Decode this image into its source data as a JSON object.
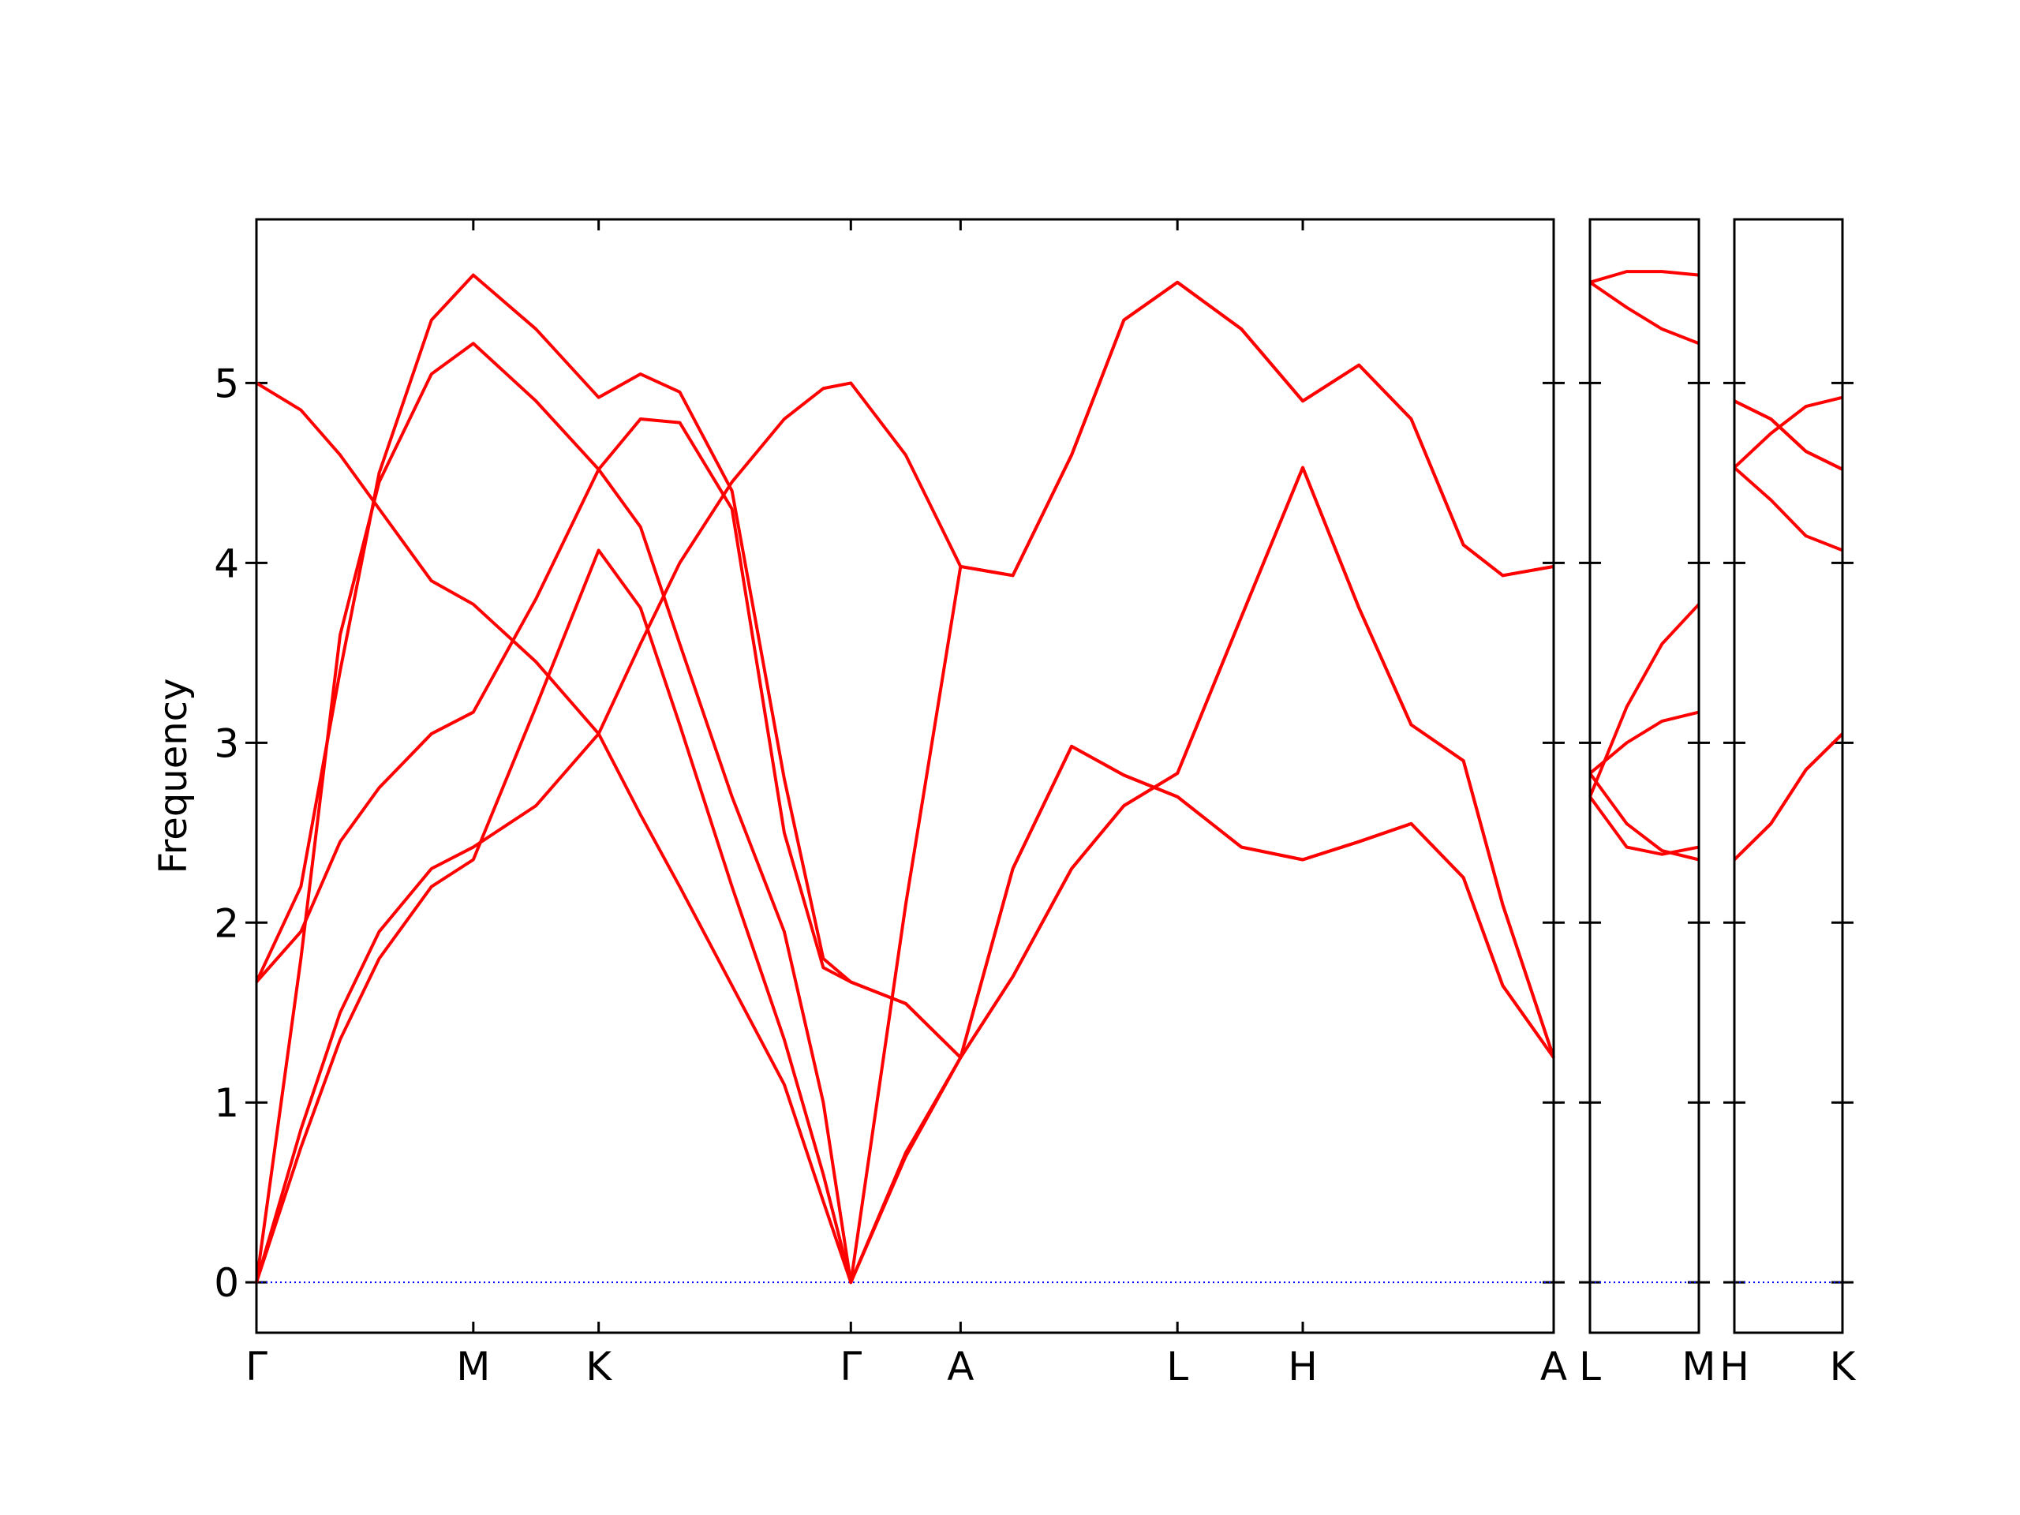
{
  "chart_data": [
    {
      "type": "line",
      "ylabel": "Frequency",
      "color": "#ff0000",
      "zero_line_color": "#0000ff",
      "xlim": [
        0,
        5.982
      ],
      "ylim": [
        -0.28,
        5.91
      ],
      "yticks": [
        0,
        1,
        2,
        3,
        4,
        5
      ],
      "xticks": [
        {
          "value": 0,
          "label": "Γ"
        },
        {
          "value": 1.0,
          "label": "M"
        },
        {
          "value": 1.578,
          "label": "K"
        },
        {
          "value": 2.741,
          "label": "Γ"
        },
        {
          "value": 3.247,
          "label": "A"
        },
        {
          "value": 4.247,
          "label": "L"
        },
        {
          "value": 4.825,
          "label": "H"
        },
        {
          "value": 5.982,
          "label": "A"
        }
      ],
      "x": [
        0,
        0.205,
        0.386,
        0.566,
        0.807,
        1.0,
        1.289,
        1.578,
        1.771,
        1.952,
        2.193,
        2.434,
        2.614,
        2.741,
        2.994,
        3.247,
        3.488,
        3.759,
        4.0,
        4.247,
        4.542,
        4.825,
        5.084,
        5.325,
        5.566,
        5.747,
        5.982
      ],
      "series": [
        {
          "values": [
            0,
            0.75,
            1.35,
            1.8,
            2.2,
            2.35,
            3.2,
            4.07,
            3.75,
            3.1,
            2.2,
            1.35,
            0.6,
            0,
            2.1,
            3.98,
            3.93,
            4.6,
            5.35,
            5.56,
            5.3,
            4.9,
            5.1,
            4.8,
            4.1,
            3.93,
            3.98
          ]
        },
        {
          "values": [
            0,
            0.85,
            1.5,
            1.95,
            2.3,
            2.42,
            2.65,
            3.05,
            3.55,
            4.0,
            4.45,
            4.8,
            4.97,
            5.0,
            4.6,
            3.98,
            3.93,
            4.6,
            5.35,
            5.56,
            5.3,
            4.9,
            5.1,
            4.8,
            4.1,
            3.93,
            3.98
          ]
        },
        {
          "values": [
            0,
            1.8,
            3.6,
            4.45,
            5.05,
            5.22,
            4.9,
            4.52,
            4.8,
            4.78,
            4.3,
            2.5,
            1.75,
            1.67,
            1.55,
            1.25,
            2.3,
            2.98,
            2.82,
            2.7,
            2.42,
            2.35,
            2.45,
            2.55,
            2.25,
            1.65,
            1.25
          ]
        },
        {
          "values": [
            1.67,
            2.2,
            3.4,
            4.5,
            5.35,
            5.6,
            5.3,
            4.92,
            5.05,
            4.95,
            4.4,
            2.8,
            1.8,
            1.67,
            1.55,
            1.25,
            2.3,
            2.98,
            2.82,
            2.7,
            2.42,
            2.35,
            2.45,
            2.55,
            2.25,
            1.65,
            1.25
          ]
        },
        {
          "values": [
            1.67,
            1.95,
            2.45,
            2.75,
            3.05,
            3.17,
            3.8,
            4.52,
            4.2,
            3.55,
            2.7,
            1.95,
            1.0,
            0,
            0.72,
            1.25,
            1.7,
            2.3,
            2.65,
            2.83,
            3.7,
            4.53,
            3.75,
            3.1,
            2.9,
            2.1,
            1.25
          ]
        },
        {
          "values": [
            5.0,
            4.85,
            4.6,
            4.3,
            3.9,
            3.77,
            3.45,
            3.05,
            2.6,
            2.2,
            1.65,
            1.1,
            0.45,
            0,
            0.7,
            1.25,
            1.7,
            2.3,
            2.65,
            2.83,
            3.7,
            4.53,
            3.75,
            3.1,
            2.9,
            2.1,
            1.25
          ]
        }
      ]
    },
    {
      "type": "line",
      "color": "#ff0000",
      "zero_line_color": "#0000ff",
      "xlim": [
        0,
        0.5
      ],
      "ylim": [
        -0.28,
        5.91
      ],
      "yticks": [
        0,
        1,
        2,
        3,
        4,
        5
      ],
      "xticks": [
        {
          "value": 0,
          "label": "L"
        },
        {
          "value": 0.5,
          "label": "M"
        }
      ],
      "x": [
        0,
        0.169,
        0.331,
        0.5
      ],
      "series": [
        {
          "values": [
            5.56,
            5.62,
            5.62,
            5.6
          ]
        },
        {
          "values": [
            5.56,
            5.42,
            5.3,
            5.22
          ]
        },
        {
          "values": [
            2.7,
            3.2,
            3.55,
            3.77
          ]
        },
        {
          "values": [
            2.7,
            2.42,
            2.38,
            2.42
          ]
        },
        {
          "values": [
            2.83,
            2.55,
            2.4,
            2.35
          ]
        },
        {
          "values": [
            2.83,
            3.0,
            3.12,
            3.17
          ]
        }
      ]
    },
    {
      "type": "line",
      "color": "#ff0000",
      "zero_line_color": "#0000ff",
      "xlim": [
        0,
        0.5
      ],
      "ylim": [
        -0.28,
        5.91
      ],
      "yticks": [
        0,
        1,
        2,
        3,
        4,
        5
      ],
      "xticks": [
        {
          "value": 0,
          "label": "H"
        },
        {
          "value": 0.5,
          "label": "K"
        }
      ],
      "x": [
        0,
        0.169,
        0.331,
        0.5
      ],
      "series": [
        {
          "values": [
            4.9,
            4.8,
            4.62,
            4.52
          ]
        },
        {
          "values": [
            4.9,
            4.8,
            4.62,
            4.52
          ]
        },
        {
          "values": [
            2.35,
            2.55,
            2.85,
            3.05
          ]
        },
        {
          "values": [
            2.35,
            2.55,
            2.85,
            3.05
          ]
        },
        {
          "values": [
            4.53,
            4.35,
            4.15,
            4.07
          ]
        },
        {
          "values": [
            4.53,
            4.72,
            4.87,
            4.92
          ]
        }
      ]
    }
  ]
}
